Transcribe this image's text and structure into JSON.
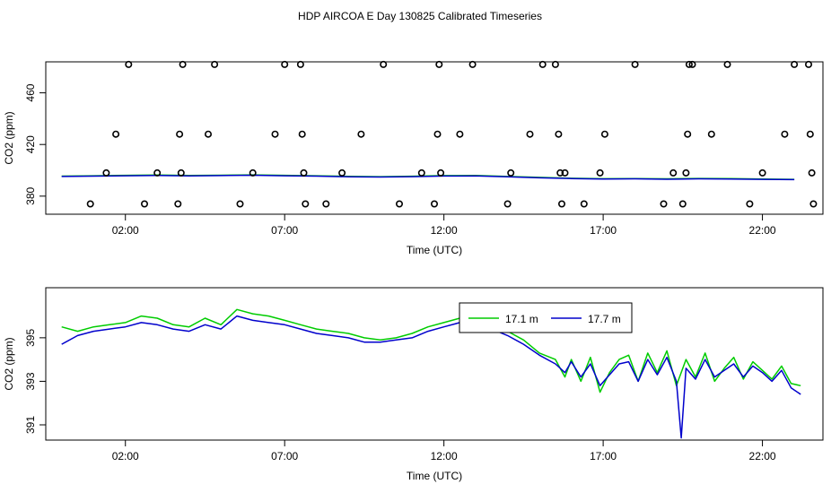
{
  "title": "HDP AIRCOA E  Day 130825  Calibrated Timeseries",
  "chart_data": [
    {
      "type": "scatter",
      "xlabel": "Time (UTC)",
      "ylabel": "CO2 (ppm)",
      "xlim": [
        -0.5,
        23.9
      ],
      "ylim": [
        366,
        484
      ],
      "x_ticks": [
        2,
        7,
        12,
        17,
        22
      ],
      "x_tick_labels": [
        "02:00",
        "07:00",
        "12:00",
        "17:00",
        "22:00"
      ],
      "y_ticks": [
        380,
        420,
        460
      ],
      "y_tick_labels": [
        "380",
        "420",
        "460"
      ],
      "grid": false,
      "legend": null,
      "points": {
        "symbol": "open-circle",
        "color": "#000000",
        "x": [
          0.9,
          1.4,
          1.7,
          2.1,
          2.6,
          3.0,
          3.65,
          3.7,
          3.75,
          3.8,
          4.6,
          4.8,
          5.6,
          6.0,
          6.7,
          7.0,
          7.5,
          7.55,
          7.6,
          7.65,
          8.3,
          8.8,
          9.4,
          10.1,
          10.6,
          11.3,
          11.7,
          11.8,
          11.85,
          11.9,
          12.5,
          12.9,
          14.0,
          14.1,
          14.7,
          15.1,
          15.5,
          15.6,
          15.65,
          15.7,
          15.8,
          16.4,
          16.9,
          17.05,
          18.0,
          18.9,
          19.2,
          19.5,
          19.6,
          19.65,
          19.7,
          19.8,
          20.4,
          20.9,
          21.6,
          22.0,
          22.7,
          23.0,
          23.45,
          23.5,
          23.55,
          23.6
        ],
        "y": [
          374,
          398,
          428,
          482,
          374,
          398,
          374,
          428,
          398,
          482,
          428,
          482,
          374,
          398,
          428,
          482,
          482,
          428,
          398,
          374,
          374,
          398,
          428,
          482,
          374,
          398,
          374,
          428,
          482,
          398,
          428,
          482,
          374,
          398,
          428,
          482,
          482,
          428,
          398,
          374,
          398,
          374,
          398,
          428,
          482,
          374,
          398,
          374,
          398,
          428,
          482,
          482,
          428,
          482,
          374,
          398,
          428,
          482,
          482,
          428,
          398,
          374
        ]
      },
      "series": [
        {
          "name": "17.1 m",
          "color": "#00cc00",
          "x": [
            0,
            1,
            2,
            3,
            4,
            5,
            6,
            7,
            8,
            9,
            10,
            11,
            12,
            13,
            14,
            15,
            16,
            17,
            18,
            19,
            20,
            21,
            22,
            23
          ],
          "y": [
            395.5,
            395.8,
            396.1,
            396.3,
            396.0,
            396.2,
            396.5,
            396.1,
            395.8,
            395.3,
            395.1,
            395.4,
            395.9,
            396.0,
            395.2,
            394.5,
            393.8,
            393.5,
            393.6,
            393.4,
            393.7,
            393.6,
            393.3,
            393.0
          ]
        },
        {
          "name": "17.7 m",
          "color": "#0000cc",
          "x": [
            0,
            1,
            2,
            3,
            4,
            5,
            6,
            7,
            8,
            9,
            10,
            11,
            12,
            13,
            14,
            15,
            16,
            17,
            18,
            19,
            20,
            21,
            22,
            23
          ],
          "y": [
            395.2,
            395.5,
            395.8,
            396.0,
            395.7,
            395.9,
            396.2,
            395.8,
            395.5,
            395.0,
            394.8,
            395.1,
            395.6,
            395.7,
            395.0,
            394.2,
            393.6,
            393.3,
            393.4,
            393.1,
            393.4,
            393.3,
            393.0,
            392.8
          ]
        }
      ]
    },
    {
      "type": "line",
      "xlabel": "Time (UTC)",
      "ylabel": "CO2 (ppm)",
      "xlim": [
        -0.5,
        23.9
      ],
      "ylim": [
        390.3,
        397.3
      ],
      "x_ticks": [
        2,
        7,
        12,
        17,
        22
      ],
      "x_tick_labels": [
        "02:00",
        "07:00",
        "12:00",
        "17:00",
        "22:00"
      ],
      "y_ticks": [
        391,
        393,
        395
      ],
      "y_tick_labels": [
        "391",
        "393",
        "395"
      ],
      "grid": false,
      "legend": {
        "position": "top-center",
        "labels": [
          "17.1 m",
          "17.7 m"
        ]
      },
      "series": [
        {
          "name": "17.1 m",
          "color": "#00cc00",
          "x": [
            0.0,
            0.5,
            1.0,
            1.5,
            2.0,
            2.5,
            3.0,
            3.5,
            4.0,
            4.5,
            5.0,
            5.5,
            6.0,
            6.5,
            7.0,
            7.5,
            8.0,
            8.5,
            9.0,
            9.5,
            10.0,
            10.5,
            11.0,
            11.5,
            12.0,
            12.5,
            13.0,
            13.5,
            14.0,
            14.5,
            15.0,
            15.5,
            15.8,
            16.0,
            16.3,
            16.6,
            16.9,
            17.2,
            17.5,
            17.8,
            18.1,
            18.4,
            18.7,
            19.0,
            19.3,
            19.6,
            19.9,
            20.2,
            20.5,
            20.8,
            21.1,
            21.4,
            21.7,
            22.0,
            22.3,
            22.6,
            22.9,
            23.2
          ],
          "y": [
            395.5,
            395.3,
            395.5,
            395.6,
            395.7,
            396.0,
            395.9,
            395.6,
            395.5,
            395.9,
            395.6,
            396.3,
            396.1,
            396.0,
            395.8,
            395.6,
            395.4,
            395.3,
            395.2,
            395.0,
            394.9,
            395.0,
            395.2,
            395.5,
            395.7,
            395.9,
            395.8,
            395.7,
            395.3,
            394.9,
            394.3,
            394.0,
            393.2,
            394.0,
            393.0,
            394.1,
            392.5,
            393.4,
            394.0,
            394.2,
            393.0,
            394.3,
            393.4,
            394.4,
            392.8,
            394.0,
            393.2,
            394.3,
            393.0,
            393.6,
            394.1,
            393.1,
            393.9,
            393.5,
            393.1,
            393.7,
            392.9,
            392.8
          ]
        },
        {
          "name": "17.7 m",
          "color": "#0000cc",
          "x": [
            0.0,
            0.5,
            1.0,
            1.5,
            2.0,
            2.5,
            3.0,
            3.5,
            4.0,
            4.5,
            5.0,
            5.5,
            6.0,
            6.5,
            7.0,
            7.5,
            8.0,
            8.5,
            9.0,
            9.5,
            10.0,
            10.5,
            11.0,
            11.5,
            12.0,
            12.5,
            13.0,
            13.5,
            14.0,
            14.5,
            15.0,
            15.5,
            15.8,
            16.0,
            16.3,
            16.6,
            16.9,
            17.2,
            17.5,
            17.8,
            18.1,
            18.4,
            18.7,
            19.0,
            19.3,
            19.45,
            19.6,
            19.9,
            20.2,
            20.5,
            20.8,
            21.1,
            21.4,
            21.7,
            22.0,
            22.3,
            22.6,
            22.9,
            23.2
          ],
          "y": [
            394.7,
            395.1,
            395.3,
            395.4,
            395.5,
            395.7,
            395.6,
            395.4,
            395.3,
            395.6,
            395.4,
            396.0,
            395.8,
            395.7,
            395.6,
            395.4,
            395.2,
            395.1,
            395.0,
            394.8,
            394.8,
            394.9,
            395.0,
            395.3,
            395.5,
            395.7,
            395.6,
            395.4,
            395.1,
            394.7,
            394.2,
            393.8,
            393.4,
            393.9,
            393.2,
            393.8,
            392.8,
            393.3,
            393.8,
            393.9,
            393.0,
            394.0,
            393.3,
            394.1,
            393.0,
            390.4,
            393.6,
            393.1,
            394.0,
            393.2,
            393.5,
            393.8,
            393.2,
            393.7,
            393.4,
            393.0,
            393.5,
            392.7,
            392.4
          ]
        }
      ]
    }
  ]
}
